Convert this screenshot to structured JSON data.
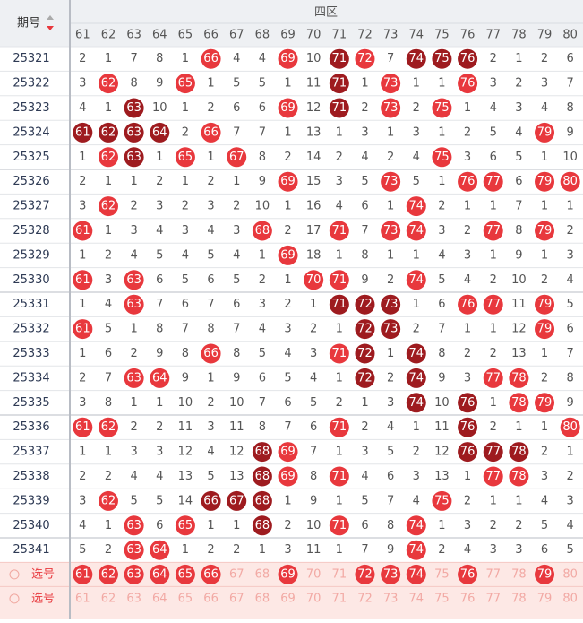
{
  "header": {
    "period": "期号",
    "zone": "四区"
  },
  "columns": [
    61,
    62,
    63,
    64,
    65,
    66,
    67,
    68,
    69,
    70,
    71,
    72,
    73,
    74,
    75,
    76,
    77,
    78,
    79,
    80
  ],
  "rows": [
    {
      "period": "25321",
      "cells": [
        2,
        1,
        7,
        8,
        1,
        66,
        4,
        4,
        69,
        10,
        71,
        72,
        7,
        74,
        75,
        76,
        2,
        1,
        2,
        6
      ],
      "dark": [
        71,
        74,
        75,
        76
      ]
    },
    {
      "period": "25322",
      "cells": [
        3,
        62,
        8,
        9,
        65,
        1,
        5,
        5,
        1,
        11,
        71,
        1,
        73,
        1,
        1,
        76,
        3,
        2,
        3,
        7
      ],
      "dark": [
        71
      ]
    },
    {
      "period": "25323",
      "cells": [
        4,
        1,
        63,
        10,
        1,
        2,
        6,
        6,
        69,
        12,
        71,
        2,
        73,
        2,
        75,
        1,
        4,
        3,
        4,
        8
      ],
      "dark": [
        63,
        71
      ]
    },
    {
      "period": "25324",
      "cells": [
        61,
        62,
        63,
        64,
        2,
        66,
        7,
        7,
        1,
        13,
        1,
        3,
        1,
        3,
        1,
        2,
        5,
        4,
        79,
        9
      ],
      "dark": [
        61,
        62,
        63,
        64
      ]
    },
    {
      "period": "25325",
      "cells": [
        1,
        62,
        63,
        1,
        65,
        1,
        67,
        8,
        2,
        14,
        2,
        4,
        2,
        4,
        75,
        3,
        6,
        5,
        1,
        10
      ],
      "dark": [
        63
      ]
    },
    {
      "period": "25326",
      "cells": [
        2,
        1,
        1,
        2,
        1,
        2,
        1,
        9,
        69,
        15,
        3,
        5,
        73,
        5,
        1,
        76,
        77,
        6,
        79,
        80
      ],
      "dark": []
    },
    {
      "period": "25327",
      "cells": [
        3,
        62,
        2,
        3,
        2,
        3,
        2,
        10,
        1,
        16,
        4,
        6,
        1,
        74,
        2,
        1,
        1,
        7,
        1,
        1
      ],
      "dark": []
    },
    {
      "period": "25328",
      "cells": [
        61,
        1,
        3,
        4,
        3,
        4,
        3,
        68,
        2,
        17,
        71,
        7,
        73,
        74,
        3,
        2,
        77,
        8,
        79,
        2
      ],
      "dark": []
    },
    {
      "period": "25329",
      "cells": [
        1,
        2,
        4,
        5,
        4,
        5,
        4,
        1,
        69,
        18,
        1,
        8,
        1,
        1,
        4,
        3,
        1,
        9,
        1,
        3
      ],
      "dark": []
    },
    {
      "period": "25330",
      "cells": [
        61,
        3,
        63,
        6,
        5,
        6,
        5,
        2,
        1,
        70,
        71,
        9,
        2,
        74,
        5,
        4,
        2,
        10,
        2,
        4
      ],
      "dark": []
    },
    {
      "period": "25331",
      "cells": [
        1,
        4,
        63,
        7,
        6,
        7,
        6,
        3,
        2,
        1,
        71,
        72,
        73,
        1,
        6,
        76,
        77,
        11,
        79,
        5
      ],
      "dark": [
        71,
        72,
        73
      ]
    },
    {
      "period": "25332",
      "cells": [
        61,
        5,
        1,
        8,
        7,
        8,
        7,
        4,
        3,
        2,
        1,
        72,
        73,
        2,
        7,
        1,
        1,
        12,
        79,
        6
      ],
      "dark": [
        72,
        73
      ]
    },
    {
      "period": "25333",
      "cells": [
        1,
        6,
        2,
        9,
        8,
        66,
        8,
        5,
        4,
        3,
        71,
        72,
        1,
        74,
        8,
        2,
        2,
        13,
        1,
        7
      ],
      "dark": [
        72,
        74
      ]
    },
    {
      "period": "25334",
      "cells": [
        2,
        7,
        63,
        64,
        9,
        1,
        9,
        6,
        5,
        4,
        1,
        72,
        2,
        74,
        9,
        3,
        77,
        78,
        2,
        8
      ],
      "dark": [
        72,
        74
      ]
    },
    {
      "period": "25335",
      "cells": [
        3,
        8,
        1,
        1,
        10,
        2,
        10,
        7,
        6,
        5,
        2,
        1,
        3,
        74,
        10,
        76,
        1,
        78,
        79,
        9
      ],
      "dark": [
        74,
        76
      ]
    },
    {
      "period": "25336",
      "cells": [
        61,
        62,
        2,
        2,
        11,
        3,
        11,
        8,
        7,
        6,
        71,
        2,
        4,
        1,
        11,
        76,
        2,
        1,
        1,
        80
      ],
      "dark": [
        76
      ]
    },
    {
      "period": "25337",
      "cells": [
        1,
        1,
        3,
        3,
        12,
        4,
        12,
        68,
        69,
        7,
        1,
        3,
        5,
        2,
        12,
        76,
        77,
        78,
        2,
        1
      ],
      "dark": [
        68,
        76,
        77,
        78
      ]
    },
    {
      "period": "25338",
      "cells": [
        2,
        2,
        4,
        4,
        13,
        5,
        13,
        68,
        69,
        8,
        71,
        4,
        6,
        3,
        13,
        1,
        77,
        78,
        3,
        2
      ],
      "dark": [
        68
      ]
    },
    {
      "period": "25339",
      "cells": [
        3,
        62,
        5,
        5,
        14,
        66,
        67,
        68,
        1,
        9,
        1,
        5,
        7,
        4,
        75,
        2,
        1,
        1,
        4,
        3
      ],
      "dark": [
        66,
        67,
        68
      ]
    },
    {
      "period": "25340",
      "cells": [
        4,
        1,
        63,
        6,
        65,
        1,
        1,
        68,
        2,
        10,
        71,
        6,
        8,
        74,
        1,
        3,
        2,
        2,
        5,
        4
      ],
      "dark": [
        68
      ]
    },
    {
      "period": "25341",
      "cells": [
        5,
        2,
        63,
        64,
        1,
        2,
        2,
        1,
        3,
        11,
        1,
        7,
        9,
        74,
        2,
        4,
        3,
        3,
        6,
        5
      ],
      "dark": []
    }
  ],
  "selection_rows": [
    {
      "label": "选号",
      "picked": [
        61,
        62,
        63,
        64,
        65,
        66,
        69,
        72,
        73,
        74,
        76,
        79
      ]
    },
    {
      "label": "选号",
      "picked": []
    }
  ]
}
